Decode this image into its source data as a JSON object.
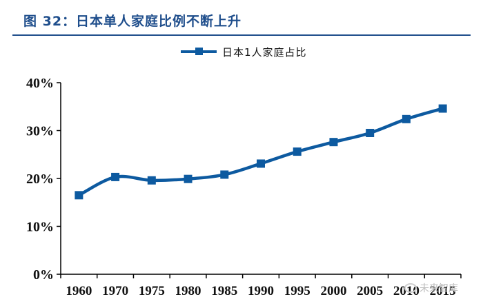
{
  "figure": {
    "title": "图 32：日本单人家庭比例不断上升",
    "title_color": "#1f4e8c",
    "line_color": "#0d5aa0"
  },
  "watermark": {
    "text": "未来智库",
    "icon": "wechat-icon"
  },
  "chart_data": {
    "type": "line",
    "title": "",
    "xlabel": "",
    "ylabel": "",
    "categories": [
      "1960",
      "1970",
      "1975",
      "1980",
      "1985",
      "1990",
      "1995",
      "2000",
      "2005",
      "2010",
      "2015"
    ],
    "series": [
      {
        "name": "日本1人家庭占比",
        "values": [
          16.5,
          20.3,
          19.6,
          19.9,
          20.8,
          23.1,
          25.6,
          27.6,
          29.5,
          32.4,
          34.6
        ]
      }
    ],
    "y_ticks": [
      "0%",
      "10%",
      "20%",
      "30%",
      "40%"
    ],
    "ylim": [
      0,
      40
    ],
    "marker": "square",
    "grid": false,
    "legend_position": "top-center"
  }
}
